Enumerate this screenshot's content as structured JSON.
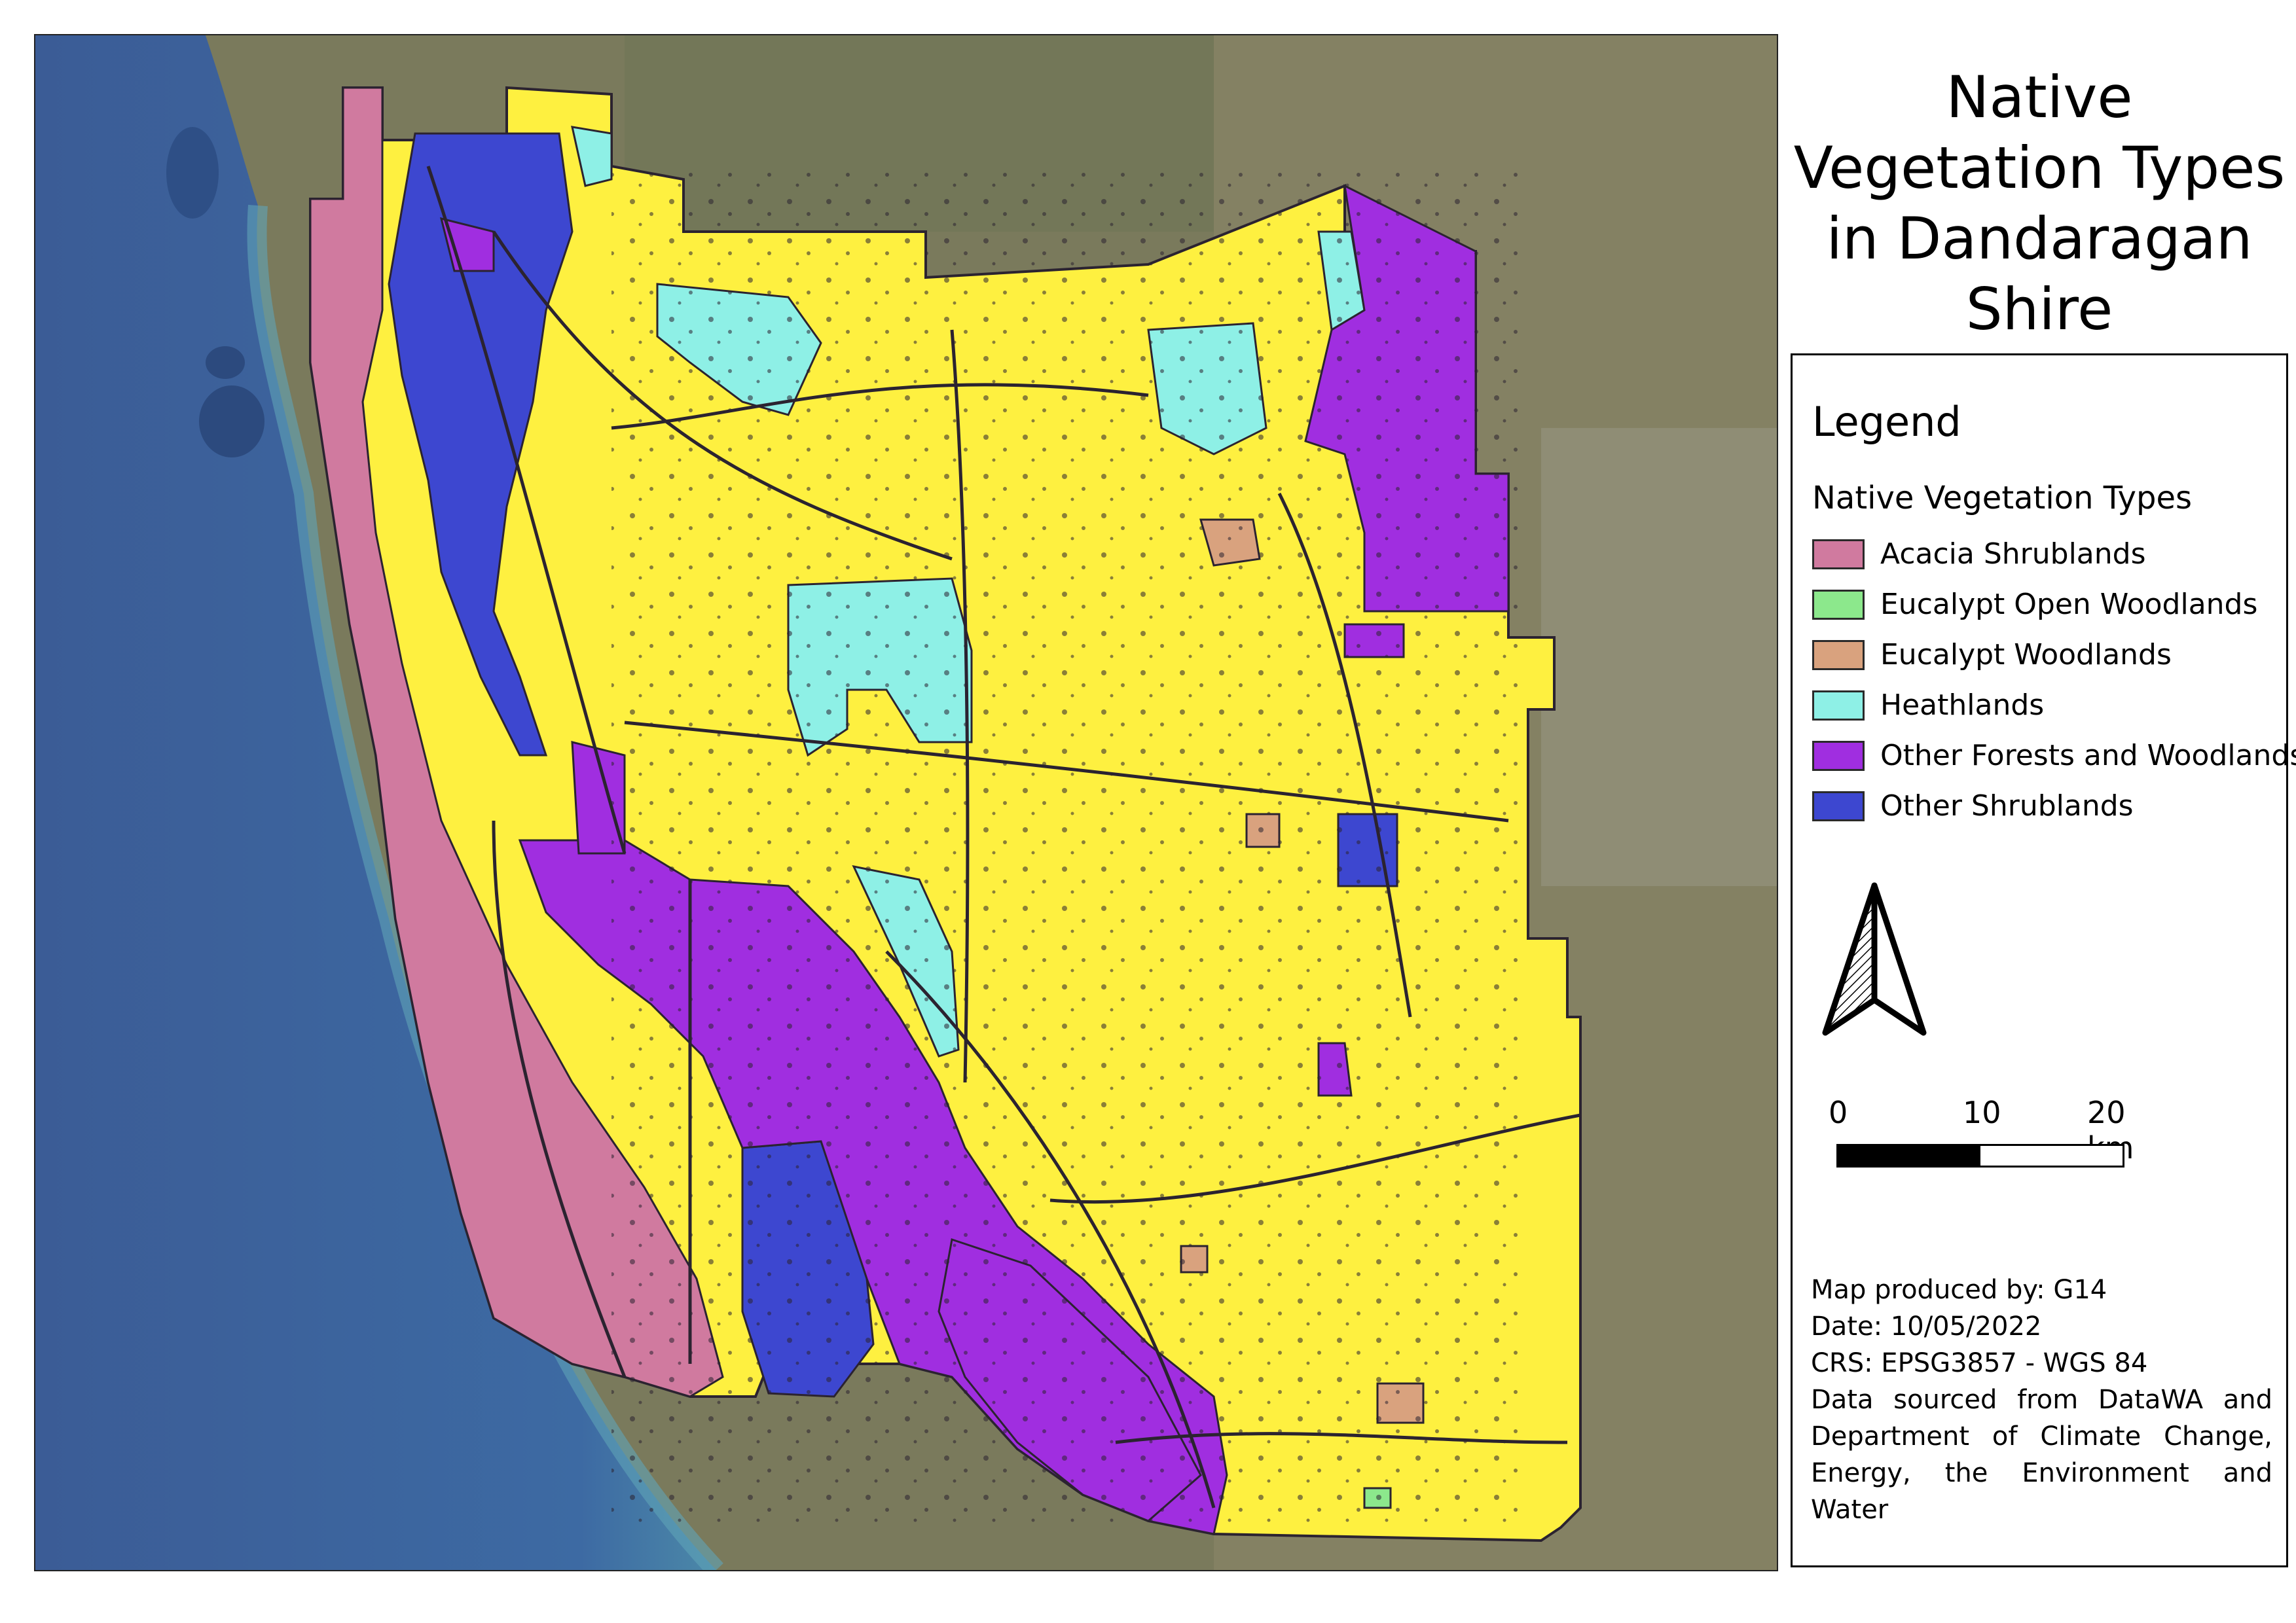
{
  "title": "Native Vegetation Types in Dandaragan Shire",
  "legend": {
    "title": "Legend",
    "subtitle": "Native Vegetation Types",
    "items": [
      {
        "label": "Acacia Shrublands",
        "color": "#d07a9f"
      },
      {
        "label": "Eucalypt Open Woodlands",
        "color": "#8ce88c"
      },
      {
        "label": "Eucalypt Woodlands",
        "color": "#d9a27e"
      },
      {
        "label": "Heathlands",
        "color": "#8ef0e6"
      },
      {
        "label": "Other Forests and Woodlands",
        "color": "#a02ee0"
      },
      {
        "label": "Other Shrublands",
        "color": "#3d47d0"
      }
    ]
  },
  "scale": {
    "labels": [
      "0",
      "10",
      "20 km"
    ]
  },
  "credits": {
    "producer": "Map produced by: G14",
    "date": "Date: 10/05/2022",
    "crs": "CRS: EPSG3857 - WGS 84",
    "source": "Data sourced from DataWA and Department of Climate Change, Energy, the Environment and Water"
  },
  "map_colors": {
    "ocean": "#3a5d97",
    "land": "#7d7b5e",
    "shire_fill": "#fef040",
    "boundary": "#2b2330"
  },
  "north_arrow_icon": "north-arrow-icon"
}
